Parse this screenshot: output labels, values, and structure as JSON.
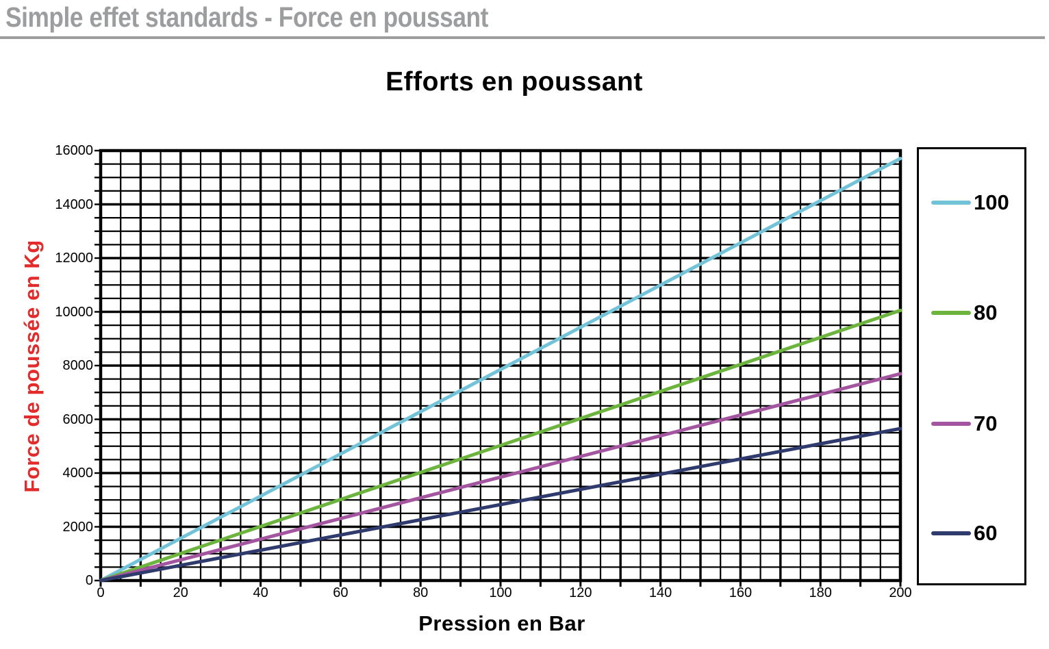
{
  "header": {
    "title": "Simple effet standards - Force en poussant"
  },
  "colors": {
    "header_gray": "#9b9d9f",
    "y_label_red": "#e32b2b",
    "grid_black": "#000000",
    "background": "#ffffff"
  },
  "chart_data": {
    "type": "line",
    "title": "Efforts en poussant",
    "xlabel": "Pression en Bar",
    "ylabel": "Force de poussée en Kg",
    "xlim": [
      0,
      200
    ],
    "ylim": [
      0,
      16000
    ],
    "x_tick_labels": [
      0,
      20,
      40,
      60,
      80,
      100,
      120,
      140,
      160,
      180,
      200
    ],
    "y_tick_labels": [
      0,
      2000,
      4000,
      6000,
      8000,
      10000,
      12000,
      14000,
      16000
    ],
    "x_tick_mark_step": 10,
    "y_tick_mark_step": 500,
    "grid": {
      "on": true,
      "minor_x_step": 5,
      "minor_y_step": 500,
      "major_x_step": 10,
      "major_y_step": 2000
    },
    "legend_position": "right",
    "x": [
      0,
      20,
      40,
      60,
      80,
      100,
      120,
      140,
      160,
      180,
      200
    ],
    "series": [
      {
        "name": "100",
        "color": "#72c3d8",
        "values": [
          0,
          1571,
          3142,
          4712,
          6283,
          7854,
          9425,
          10996,
          12566,
          14137,
          15708
        ]
      },
      {
        "name": "80",
        "color": "#6cb43e",
        "values": [
          0,
          1005,
          2011,
          3016,
          4021,
          5027,
          6032,
          7037,
          8042,
          9048,
          10053
        ]
      },
      {
        "name": "70",
        "color": "#a4559f",
        "values": [
          0,
          770,
          1539,
          2309,
          3079,
          3848,
          4618,
          5388,
          6158,
          6927,
          7697
        ]
      },
      {
        "name": "60",
        "color": "#2f3a6d",
        "values": [
          0,
          565,
          1131,
          1696,
          2262,
          2827,
          3393,
          3958,
          4524,
          5089,
          5655
        ]
      }
    ]
  }
}
